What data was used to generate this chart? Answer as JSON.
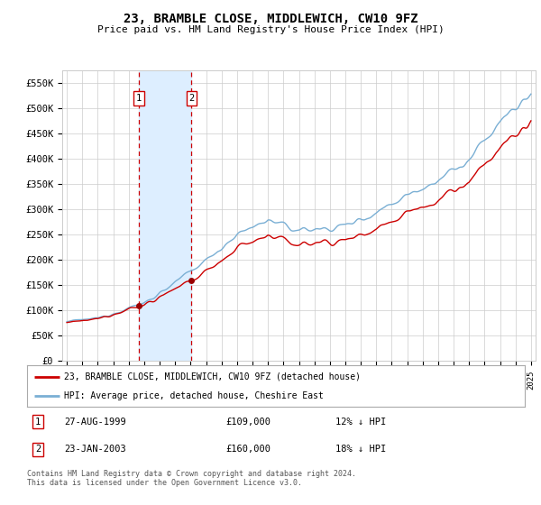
{
  "title": "23, BRAMBLE CLOSE, MIDDLEWICH, CW10 9FZ",
  "subtitle": "Price paid vs. HM Land Registry's House Price Index (HPI)",
  "legend_line1": "23, BRAMBLE CLOSE, MIDDLEWICH, CW10 9FZ (detached house)",
  "legend_line2": "HPI: Average price, detached house, Cheshire East",
  "footer": "Contains HM Land Registry data © Crown copyright and database right 2024.\nThis data is licensed under the Open Government Licence v3.0.",
  "transaction1_date": "27-AUG-1999",
  "transaction1_price": "£109,000",
  "transaction1_hpi": "12% ↓ HPI",
  "transaction2_date": "23-JAN-2003",
  "transaction2_price": "£160,000",
  "transaction2_hpi": "18% ↓ HPI",
  "hpi_color": "#7aafd4",
  "price_color": "#cc0000",
  "marker_color": "#990000",
  "vline_color": "#cc0000",
  "vspan_color": "#ddeeff",
  "grid_color": "#cccccc",
  "background_color": "#ffffff",
  "ylim": [
    0,
    575000
  ],
  "yticks": [
    0,
    50000,
    100000,
    150000,
    200000,
    250000,
    300000,
    350000,
    400000,
    450000,
    500000,
    550000
  ],
  "ytick_labels": [
    "£0",
    "£50K",
    "£100K",
    "£150K",
    "£200K",
    "£250K",
    "£300K",
    "£350K",
    "£400K",
    "£450K",
    "£500K",
    "£550K"
  ],
  "transaction1_x": 1999.65,
  "transaction1_y": 109000,
  "transaction2_x": 2003.06,
  "transaction2_y": 160000,
  "vline1_x": 1999.65,
  "vline2_x": 2003.06,
  "xmin": 1994.7,
  "xmax": 2025.3
}
